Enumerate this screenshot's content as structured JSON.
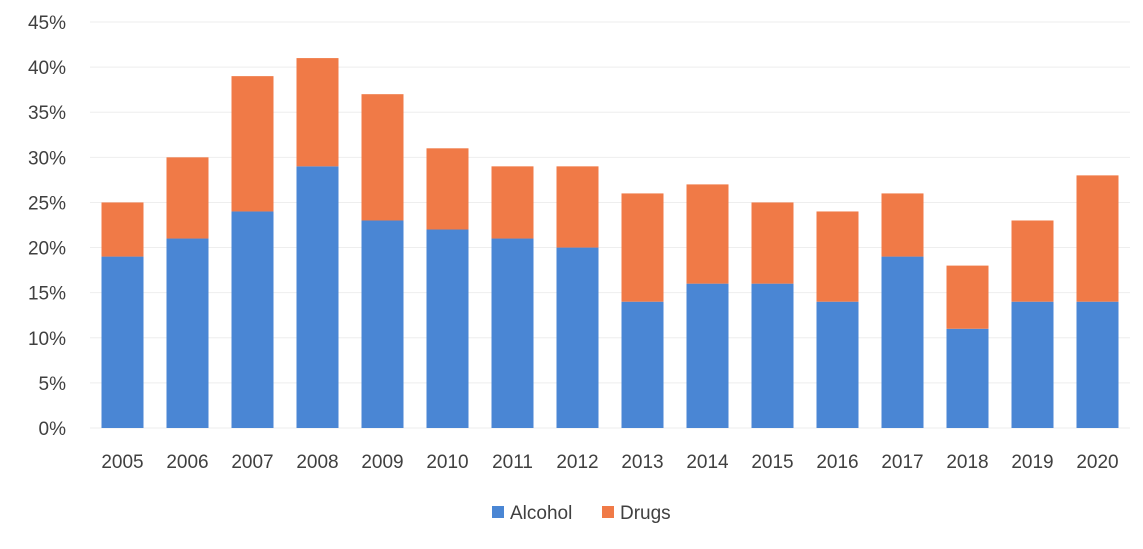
{
  "colors": {
    "alcohol": "#4a86d4",
    "drugs": "#f07a47",
    "gridline": "#eeeeee",
    "text": "#404040"
  },
  "chart_data": {
    "type": "bar",
    "stacked": true,
    "categories": [
      "2005",
      "2006",
      "2007",
      "2008",
      "2009",
      "2010",
      "2011",
      "2012",
      "2013",
      "2014",
      "2015",
      "2016",
      "2017",
      "2018",
      "2019",
      "2020"
    ],
    "series": [
      {
        "name": "Alcohol",
        "color": "#4a86d4",
        "values": [
          19,
          21,
          24,
          29,
          23,
          22,
          21,
          20,
          14,
          16,
          16,
          14,
          19,
          11,
          14,
          14
        ]
      },
      {
        "name": "Drugs",
        "color": "#f07a47",
        "values": [
          6,
          9,
          15,
          12,
          14,
          9,
          8,
          9,
          12,
          11,
          9,
          10,
          7,
          7,
          9,
          14
        ]
      }
    ],
    "y_ticks": [
      "0%",
      "5%",
      "10%",
      "15%",
      "20%",
      "25%",
      "30%",
      "35%",
      "40%",
      "45%"
    ],
    "ylim": [
      0,
      45
    ],
    "y_unit": "%",
    "grid": true,
    "legend": "bottom-center",
    "title": "",
    "xlabel": "",
    "ylabel": ""
  }
}
